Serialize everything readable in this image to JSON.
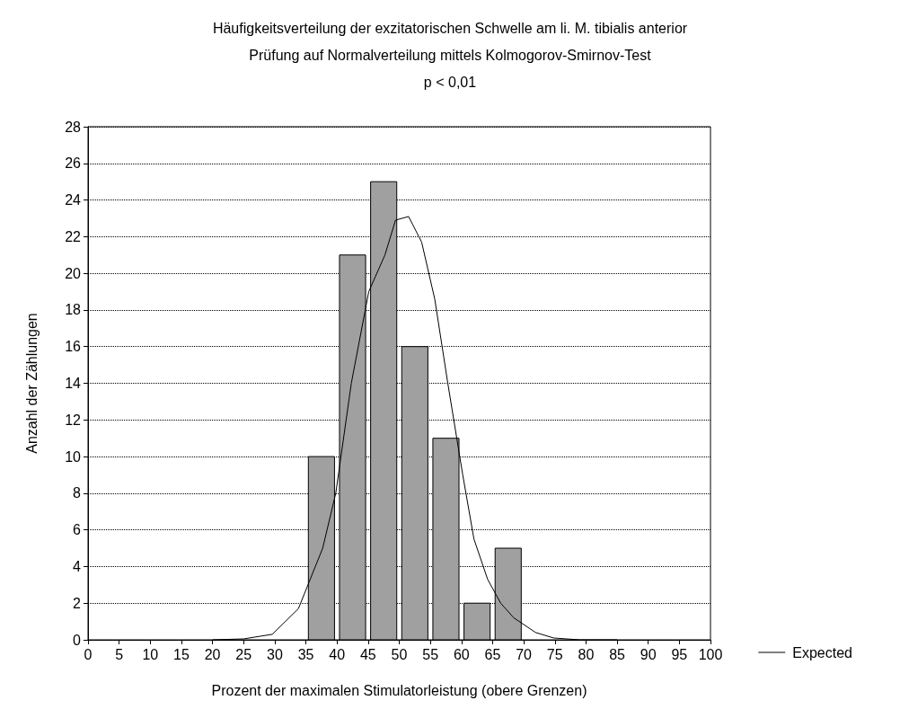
{
  "chart_data": {
    "type": "histogram",
    "title": "Häufigkeitsverteilung der exzitatorischen Schwelle am li. M. tibialis anterior",
    "subtitle": "Prüfung auf Normalverteilung mittels Kolmogorov-Smirnov-Test",
    "annotations": [
      "p < 0,01"
    ],
    "xlabel": "Prozent der maximalen Stimulatorleistung (obere Grenzen)",
    "ylabel": "Anzahl der Zählungen",
    "series": [
      {
        "color": "#a0a0a0",
        "bins": [
          35,
          40,
          45,
          50,
          55,
          60,
          65,
          70
        ],
        "values": [
          10,
          21,
          25,
          16,
          11,
          2,
          5
        ]
      },
      {
        "type": "line",
        "name": "Expected",
        "color": "#000000",
        "x": [
          20,
          25,
          29.6,
          33.8,
          37.7,
          39.8,
          42.3,
          45.1,
          47.7,
          49.4,
          51.5,
          53.6,
          55.7,
          57.8,
          60.2,
          62,
          64.2,
          66.3,
          68.4,
          71.9,
          74.8,
          79,
          85
        ],
        "values": [
          0,
          0.05,
          0.3,
          1.7,
          5,
          8,
          14,
          19,
          21,
          22.9,
          23.1,
          21.7,
          18.6,
          14,
          9,
          5.5,
          3.3,
          2,
          1.2,
          0.4,
          0.1,
          0,
          0
        ]
      }
    ],
    "xlim": [
      0,
      100
    ],
    "xticks": [
      0,
      5,
      10,
      15,
      20,
      25,
      30,
      35,
      40,
      45,
      50,
      55,
      60,
      65,
      70,
      75,
      80,
      85,
      90,
      95,
      100
    ],
    "ylim": [
      0,
      28
    ],
    "yticks": [
      0,
      2,
      4,
      6,
      8,
      10,
      12,
      14,
      16,
      18,
      20,
      22,
      24,
      26,
      28
    ],
    "grid": "y",
    "legend": "right",
    "marker": "none",
    "line_style": "solid"
  }
}
